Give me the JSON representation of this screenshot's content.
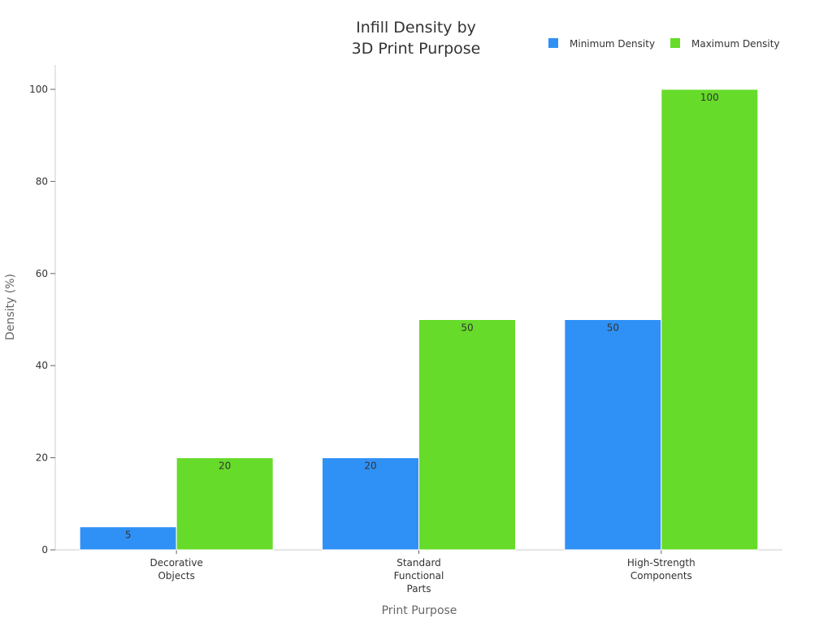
{
  "chart_data": {
    "type": "bar",
    "title": [
      "Infill Density by",
      "3D Print Purpose"
    ],
    "xlabel": "Print Purpose",
    "ylabel": "Density (%)",
    "categories": [
      [
        "Decorative",
        "Objects"
      ],
      [
        "Standard",
        "Functional",
        "Parts"
      ],
      [
        "High-Strength",
        "Components"
      ]
    ],
    "series": [
      {
        "name": "Minimum Density",
        "color": "#2f91f5",
        "values": [
          5,
          20,
          50
        ]
      },
      {
        "name": "Maximum Density",
        "color": "#66db2a",
        "values": [
          20,
          50,
          100
        ]
      }
    ],
    "ylim": [
      0,
      105
    ],
    "yticks": [
      0,
      20,
      40,
      60,
      80,
      100
    ],
    "grid": false,
    "legend": "top-right",
    "data_labels": true
  }
}
